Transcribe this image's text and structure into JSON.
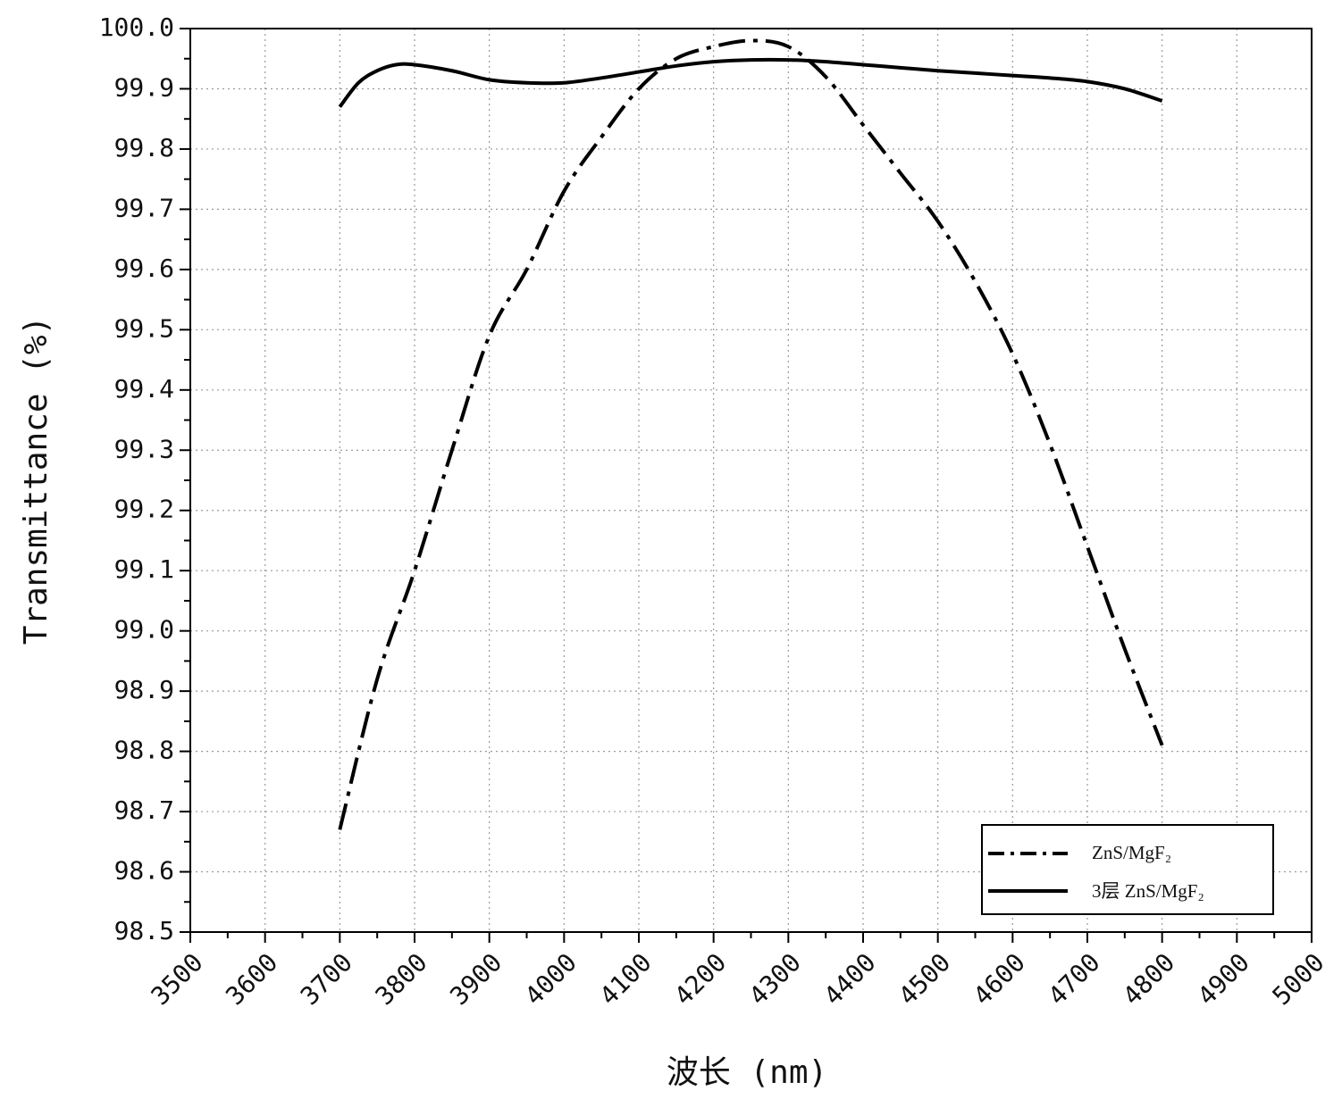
{
  "chart_data": {
    "type": "line",
    "title": "",
    "xlabel": "波长 (nm)",
    "ylabel": "Transmittance (%)",
    "xlim": [
      3500,
      5000
    ],
    "ylim": [
      98.5,
      100.0
    ],
    "x_ticks": [
      3500,
      3600,
      3700,
      3800,
      3900,
      4000,
      4100,
      4200,
      4300,
      4400,
      4500,
      4600,
      4700,
      4800,
      4900,
      5000
    ],
    "y_ticks": [
      98.5,
      98.6,
      98.7,
      98.8,
      98.9,
      99.0,
      99.1,
      99.2,
      99.3,
      99.4,
      99.5,
      99.6,
      99.7,
      99.8,
      99.9,
      100.0
    ],
    "x_tick_labels": [
      "3500",
      "3600",
      "3700",
      "3800",
      "3900",
      "4000",
      "4100",
      "4200",
      "4300",
      "4400",
      "4500",
      "4600",
      "4700",
      "4800",
      "4900",
      "5000"
    ],
    "y_tick_labels": [
      "98.5",
      "98.6",
      "98.7",
      "98.8",
      "98.9",
      "99.0",
      "99.1",
      "99.2",
      "99.3",
      "99.4",
      "99.5",
      "99.6",
      "99.7",
      "99.8",
      "99.9",
      "100.0"
    ],
    "grid": true,
    "legend_position": "bottom-right",
    "colors": {
      "line": "#000000",
      "grid": "#9a9a9a",
      "axis": "#000000"
    },
    "series": [
      {
        "name": "ZnS/MgF₂",
        "style": "dash-dot",
        "x": [
          3700,
          3750,
          3800,
          3850,
          3900,
          3950,
          4000,
          4050,
          4100,
          4150,
          4200,
          4250,
          4300,
          4350,
          4400,
          4450,
          4500,
          4550,
          4600,
          4650,
          4700,
          4750,
          4800
        ],
        "y": [
          98.67,
          98.92,
          99.1,
          99.3,
          99.49,
          99.6,
          99.73,
          99.82,
          99.9,
          99.95,
          99.97,
          99.98,
          99.97,
          99.92,
          99.84,
          99.76,
          99.68,
          99.58,
          99.46,
          99.31,
          99.14,
          98.97,
          98.81
        ]
      },
      {
        "name": "3层 ZnS/MgF₂",
        "style": "solid",
        "x": [
          3700,
          3725,
          3750,
          3775,
          3800,
          3850,
          3900,
          3950,
          4000,
          4050,
          4100,
          4150,
          4200,
          4250,
          4300,
          4350,
          4400,
          4450,
          4500,
          4550,
          4600,
          4650,
          4700,
          4750,
          4800
        ],
        "y": [
          99.87,
          99.91,
          99.93,
          99.94,
          99.94,
          99.93,
          99.915,
          99.91,
          99.91,
          99.918,
          99.928,
          99.938,
          99.945,
          99.948,
          99.948,
          99.945,
          99.94,
          99.935,
          99.93,
          99.926,
          99.922,
          99.918,
          99.912,
          99.9,
          99.88
        ]
      }
    ]
  }
}
